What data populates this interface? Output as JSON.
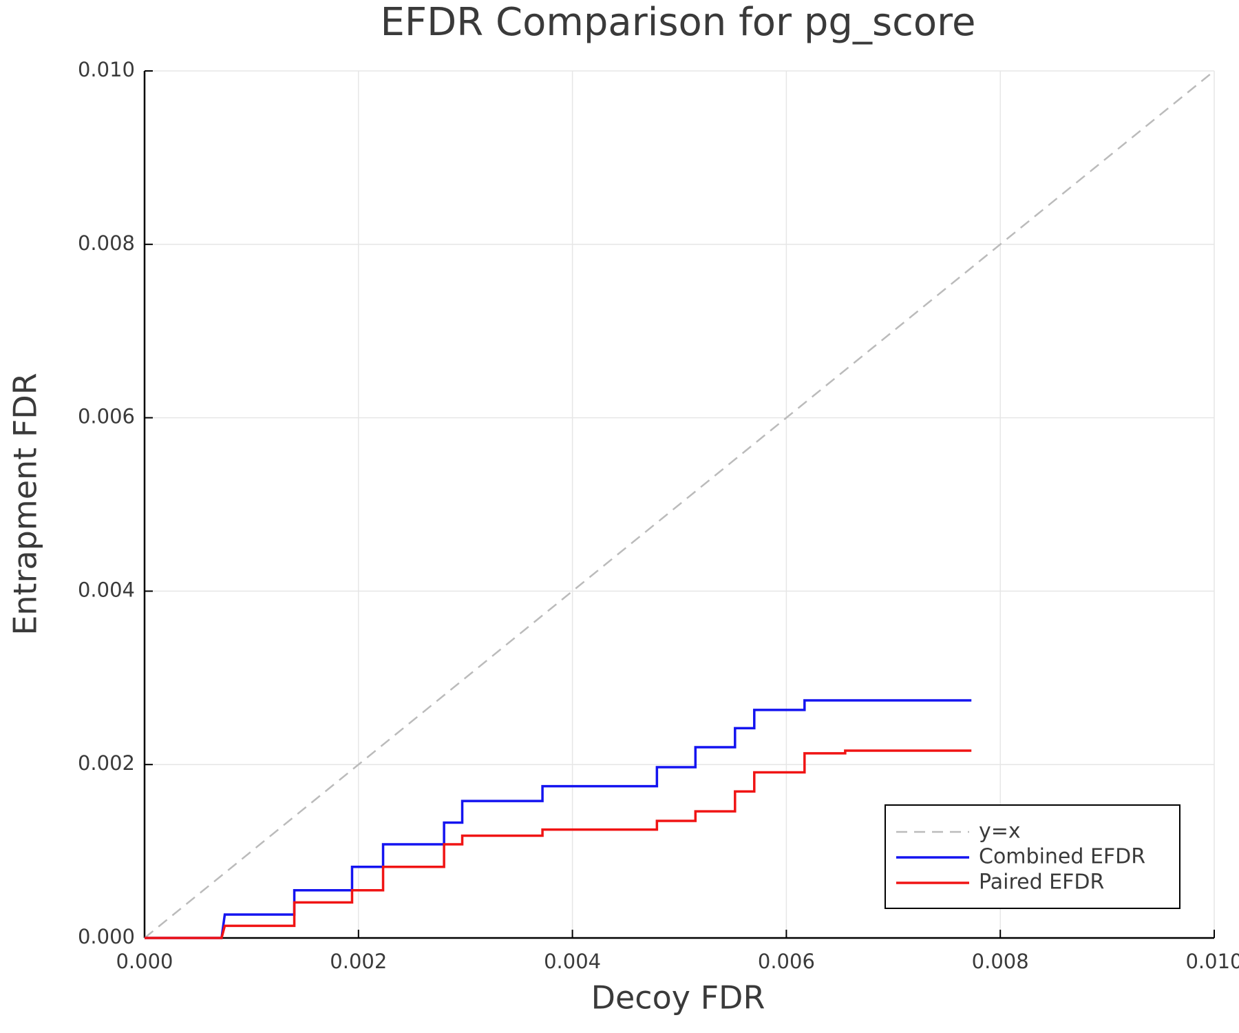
{
  "chart_data": {
    "type": "line",
    "title": "EFDR Comparison for pg_score",
    "x_label": "Decoy FDR",
    "y_label": "Entrapment FDR",
    "xlim": [
      0,
      0.01
    ],
    "ylim": [
      0,
      0.01
    ],
    "xticks": [
      {
        "value": 0,
        "label": "0.000"
      },
      {
        "value": 0.002,
        "label": "0.002"
      },
      {
        "value": 0.004,
        "label": "0.004"
      },
      {
        "value": 0.006,
        "label": "0.006"
      },
      {
        "value": 0.008,
        "label": "0.008"
      },
      {
        "value": 0.01,
        "label": "0.010"
      }
    ],
    "yticks": [
      {
        "value": 0,
        "label": "0.000"
      },
      {
        "value": 0.002,
        "label": "0.002"
      },
      {
        "value": 0.004,
        "label": "0.004"
      },
      {
        "value": 0.006,
        "label": "0.006"
      },
      {
        "value": 0.008,
        "label": "0.008"
      },
      {
        "value": 0.01,
        "label": "0.010"
      }
    ],
    "grid": true,
    "legend": "bottom-right",
    "series": [
      {
        "name": "y=x",
        "color": "#bbbbbb",
        "dashed": true,
        "x": [
          0,
          0.01
        ],
        "values": [
          0,
          0.01
        ]
      },
      {
        "name": "Combined EFDR",
        "color": "#1414f0",
        "dashed": false,
        "x": [
          0,
          0.00072,
          0.00075,
          0.0014,
          0.0014,
          0.00194,
          0.00194,
          0.00223,
          0.00223,
          0.0028,
          0.0028,
          0.00297,
          0.00297,
          0.00372,
          0.00372,
          0.00479,
          0.00479,
          0.00515,
          0.00515,
          0.00552,
          0.00552,
          0.0057,
          0.0057,
          0.00617,
          0.00617,
          0.00773
        ],
        "values": [
          0,
          0,
          0.00027,
          0.00027,
          0.00055,
          0.00055,
          0.00082,
          0.00082,
          0.00108,
          0.00108,
          0.00133,
          0.00133,
          0.00158,
          0.00158,
          0.00175,
          0.00175,
          0.00197,
          0.00197,
          0.0022,
          0.0022,
          0.00242,
          0.00242,
          0.00263,
          0.00263,
          0.00274,
          0.00274
        ]
      },
      {
        "name": "Paired EFDR",
        "color": "#f01414",
        "dashed": false,
        "x": [
          0,
          0.00072,
          0.00075,
          0.0014,
          0.0014,
          0.00194,
          0.00194,
          0.00223,
          0.00223,
          0.0028,
          0.0028,
          0.00297,
          0.00297,
          0.00372,
          0.00372,
          0.00479,
          0.00479,
          0.00515,
          0.00515,
          0.00552,
          0.00552,
          0.0057,
          0.0057,
          0.00617,
          0.00617,
          0.00655,
          0.00655,
          0.00773
        ],
        "values": [
          0,
          0,
          0.00014,
          0.00014,
          0.00041,
          0.00041,
          0.00055,
          0.00055,
          0.00082,
          0.00082,
          0.00108,
          0.00108,
          0.00118,
          0.00118,
          0.00125,
          0.00125,
          0.00135,
          0.00135,
          0.00146,
          0.00146,
          0.00169,
          0.00169,
          0.00191,
          0.00191,
          0.00213,
          0.00213,
          0.00216,
          0.00216
        ]
      }
    ]
  }
}
